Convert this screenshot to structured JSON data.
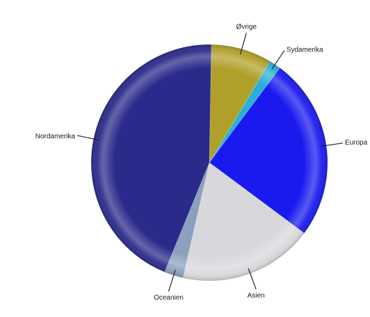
{
  "chart_data": {
    "type": "pie",
    "title": "",
    "slices": [
      {
        "label": "Øvrige",
        "value": 8.3,
        "color": "#b0a02a"
      },
      {
        "label": "Sydamerika",
        "value": 1.6,
        "color": "#2ab0d6"
      },
      {
        "label": "Europa",
        "value": 25.0,
        "color": "#1a1aee"
      },
      {
        "label": "Asien",
        "value": 18.4,
        "color": "#d8d8dc"
      },
      {
        "label": "Oceanien",
        "value": 2.6,
        "color": "#8aa0bc"
      },
      {
        "label": "Nordamerika",
        "value": 44.1,
        "color": "#2a2a8a"
      }
    ],
    "legend": "none"
  }
}
